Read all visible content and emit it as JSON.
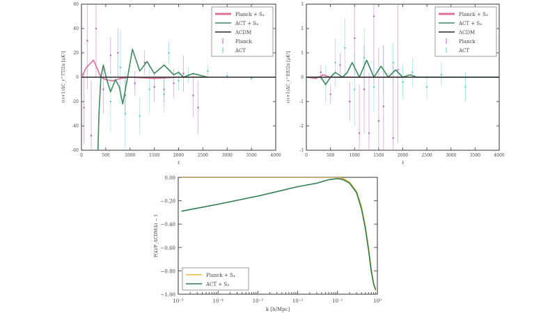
{
  "chart_data": [
    {
      "type": "line",
      "xlabel": "ℓ",
      "ylabel": "ℓ(ℓ+1)ΔC_ℓ^TT/2π [μK²]",
      "xlim": [
        0,
        4000
      ],
      "ylim": [
        -60,
        60
      ],
      "xticks": [
        0,
        500,
        1000,
        1500,
        2000,
        2500,
        3000,
        3500,
        4000
      ],
      "yticks": [
        -60,
        -40,
        -20,
        0,
        20,
        40,
        60
      ],
      "legend": "top-right",
      "series": [
        {
          "name": "Planck + S₄",
          "color": "#e0709a",
          "x": [
            0,
            100,
            250,
            400,
            500,
            650,
            800,
            1000,
            1500,
            2000,
            2500
          ],
          "y": [
            0,
            8,
            14,
            0,
            -2,
            -3,
            -1,
            0,
            -1,
            0,
            0
          ]
        },
        {
          "name": "ACT + S₄",
          "color": "#3d8a5e",
          "x": [
            340,
            360,
            400,
            450,
            520,
            600,
            700,
            780,
            850,
            950,
            1050,
            1200,
            1350,
            1500,
            1700,
            1900,
            2000,
            2100,
            2300,
            2600
          ],
          "y": [
            -60,
            -30,
            0,
            10,
            -2,
            -12,
            -2,
            -8,
            -22,
            0,
            23,
            5,
            13,
            3,
            10,
            2,
            4,
            0,
            3,
            0
          ]
        },
        {
          "name": "ΛCDM",
          "color": "#2a2a2a",
          "x": [
            0,
            4000
          ],
          "y": [
            0,
            0
          ]
        }
      ],
      "points": [
        {
          "name": "Planck",
          "color": "#b060c0",
          "x": [
            50,
            120,
            200,
            300,
            450,
            600,
            750,
            900,
            1100,
            1300,
            1500,
            1700,
            1900,
            2100,
            2300,
            2400
          ],
          "y": [
            -25,
            30,
            -48,
            40,
            -10,
            18,
            20,
            -15,
            -5,
            12,
            -8,
            -10,
            -5,
            3,
            -15,
            -25
          ],
          "err": [
            30,
            40,
            45,
            40,
            20,
            15,
            20,
            15,
            10,
            10,
            12,
            10,
            12,
            15,
            18,
            22
          ]
        },
        {
          "name": "ACT",
          "color": "#60c8c8",
          "x": [
            600,
            800,
            900,
            1200,
            1400,
            1700,
            1800,
            2000,
            2200,
            2600,
            3000,
            3500
          ],
          "y": [
            -20,
            8,
            -30,
            -32,
            -10,
            -14,
            20,
            -3,
            2,
            5,
            1,
            -1
          ],
          "err": [
            25,
            30,
            35,
            15,
            20,
            15,
            10,
            8,
            6,
            5,
            3,
            2
          ]
        }
      ]
    },
    {
      "type": "line",
      "xlabel": "ℓ",
      "ylabel": "ℓ(ℓ+1)ΔC_ℓ^EE/2π [μK²]",
      "xlim": [
        0,
        4000
      ],
      "ylim": [
        -3,
        3
      ],
      "xticks": [
        0,
        500,
        1000,
        1500,
        2000,
        2500,
        3000,
        3500,
        4000
      ],
      "yticks": [
        -3,
        -2,
        -1,
        0,
        1,
        2,
        3
      ],
      "legend": "top-right",
      "series": [
        {
          "name": "Planck + S₄",
          "color": "#e0709a",
          "x": [
            0,
            200,
            350,
            500,
            800,
            1200,
            1600,
            2000
          ],
          "y": [
            0,
            -0.05,
            0.1,
            0,
            0,
            0,
            0,
            0
          ]
        },
        {
          "name": "ACT + S₄",
          "color": "#3d8a5e",
          "x": [
            0,
            300,
            400,
            500,
            600,
            750,
            850,
            950,
            1100,
            1250,
            1400,
            1550,
            1700,
            1850,
            2000,
            2150,
            2300,
            2500,
            4000
          ],
          "y": [
            0,
            0,
            -0.3,
            0,
            0.2,
            0,
            0.2,
            0.6,
            0,
            0.7,
            0,
            0.45,
            0,
            0.3,
            0,
            0.1,
            0,
            0,
            0
          ]
        },
        {
          "name": "ΛCDM",
          "color": "#2a2a2a",
          "x": [
            0,
            4000
          ],
          "y": [
            0,
            0
          ]
        }
      ],
      "points": [
        {
          "name": "Planck",
          "color": "#b060c0",
          "x": [
            300,
            500,
            700,
            900,
            1000,
            1100,
            1200,
            1300,
            1400,
            1500,
            1600,
            1800,
            1900
          ],
          "y": [
            0.2,
            -0.7,
            0.5,
            -1,
            1.6,
            -2.3,
            -0.5,
            -2.3,
            2.5,
            -1.8,
            -1.2,
            -2.5,
            0.3
          ],
          "err": [
            0.3,
            0.4,
            0.5,
            0.8,
            1.5,
            2,
            1.8,
            2.5,
            2.8,
            3,
            2.5,
            3,
            3
          ]
        },
        {
          "name": "ACT",
          "color": "#60c8c8",
          "x": [
            400,
            600,
            800,
            1000,
            1200,
            1400,
            1600,
            1800,
            2000,
            2200,
            2500,
            2800,
            3300
          ],
          "y": [
            -0.3,
            0.6,
            1.2,
            -0.5,
            0.8,
            -0.4,
            0.3,
            0.6,
            -0.2,
            0.2,
            -0.4,
            0.1,
            -0.4
          ],
          "err": [
            0.8,
            1,
            1.2,
            1.5,
            1.2,
            1,
            1,
            0.8,
            0.7,
            0.6,
            0.5,
            0.5,
            0.6
          ]
        }
      ]
    },
    {
      "type": "line",
      "xlabel": "k  [h/Mpc]",
      "ylabel": "P(k)/P_ΛCDM(k) − 1",
      "xscale": "log",
      "xlim": [
        1e-05,
        1
      ],
      "ylim": [
        -1,
        0
      ],
      "xticks": [
        "10⁻⁵",
        "10⁻⁴",
        "10⁻³",
        "10⁻²",
        "10⁻¹",
        "10⁰"
      ],
      "yticks": [
        "0.00",
        "−0.20",
        "−0.40",
        "−0.60",
        "−0.80",
        "−1.00"
      ],
      "legend": "lower-left",
      "series": [
        {
          "name": "Planck + S₄",
          "color": "#e8b840",
          "x": [
            1.2e-05,
            0.001,
            0.06,
            0.1,
            0.14,
            0.2,
            0.3,
            0.4,
            0.5,
            0.6,
            0.7,
            0.8,
            0.9
          ],
          "y": [
            0,
            0,
            0,
            0,
            -0.01,
            -0.04,
            -0.12,
            -0.25,
            -0.42,
            -0.6,
            -0.78,
            -0.9,
            -0.97
          ]
        },
        {
          "name": "ACT + S₄",
          "color": "#2f7a50",
          "x": [
            1.2e-05,
            0.0001,
            0.001,
            0.01,
            0.03,
            0.06,
            0.1,
            0.14,
            0.2,
            0.3,
            0.4,
            0.5,
            0.6,
            0.7,
            0.8,
            0.9
          ],
          "y": [
            -0.29,
            -0.23,
            -0.16,
            -0.08,
            -0.05,
            -0.02,
            -0.01,
            -0.02,
            -0.05,
            -0.13,
            -0.27,
            -0.44,
            -0.62,
            -0.8,
            -0.91,
            -0.96
          ]
        }
      ]
    }
  ]
}
